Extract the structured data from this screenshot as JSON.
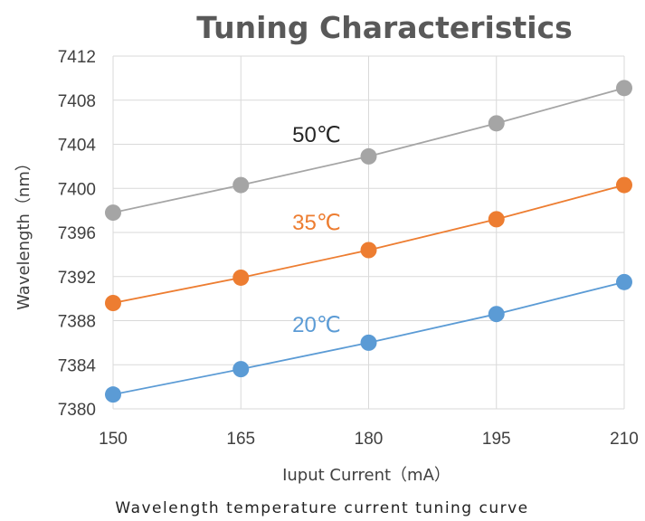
{
  "chart_data": {
    "type": "line",
    "title": "Tuning Characteristics",
    "xlabel": "Iuput Current（mA）",
    "ylabel": "Wavelength（nm）",
    "caption": "Wavelength temperature current tuning curve",
    "x": [
      150,
      165,
      180,
      195,
      210
    ],
    "xlim": [
      150,
      210
    ],
    "ylim": [
      7380,
      7412
    ],
    "yticks": [
      7380,
      7384,
      7388,
      7392,
      7396,
      7400,
      7404,
      7408,
      7412
    ],
    "grid": true,
    "series": [
      {
        "name": "50℃",
        "color": "#A5A5A5",
        "values": [
          7397.8,
          7400.3,
          7402.9,
          7405.9,
          7409.1
        ]
      },
      {
        "name": "35℃",
        "color": "#ED7D31",
        "values": [
          7389.6,
          7391.9,
          7394.4,
          7397.2,
          7400.3
        ]
      },
      {
        "name": "20℃",
        "color": "#5B9BD5",
        "values": [
          7381.3,
          7383.6,
          7386.0,
          7388.6,
          7391.5
        ]
      }
    ]
  }
}
